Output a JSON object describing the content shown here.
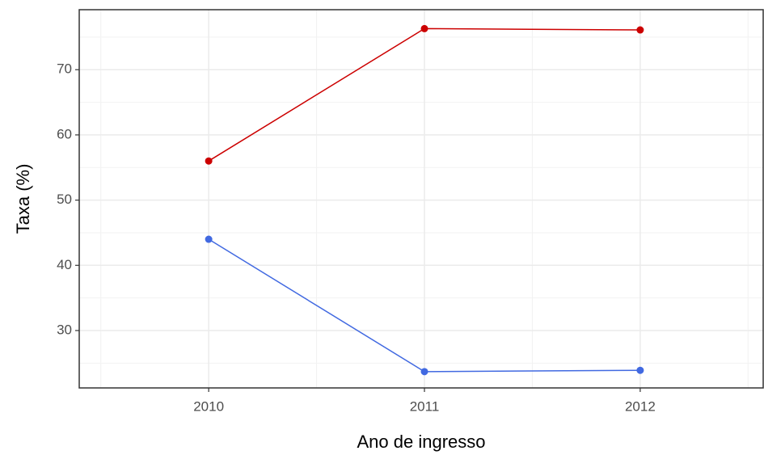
{
  "chart_data": {
    "type": "line",
    "x_label": "Ano de ingresso",
    "y_label": "Taxa (%)",
    "x": [
      2010,
      2011,
      2012
    ],
    "series": [
      {
        "color": "#cc0000",
        "values": [
          56,
          76.3,
          76.1
        ]
      },
      {
        "color": "#4169e1",
        "values": [
          44,
          23.7,
          23.9
        ]
      }
    ],
    "xlim": [
      2009.4,
      2012.57
    ],
    "xticks": [
      2010,
      2011,
      2012
    ],
    "ylim": [
      21.2,
      79.2
    ],
    "yticks": [
      30,
      40,
      50,
      60,
      70
    ],
    "grid": true
  }
}
